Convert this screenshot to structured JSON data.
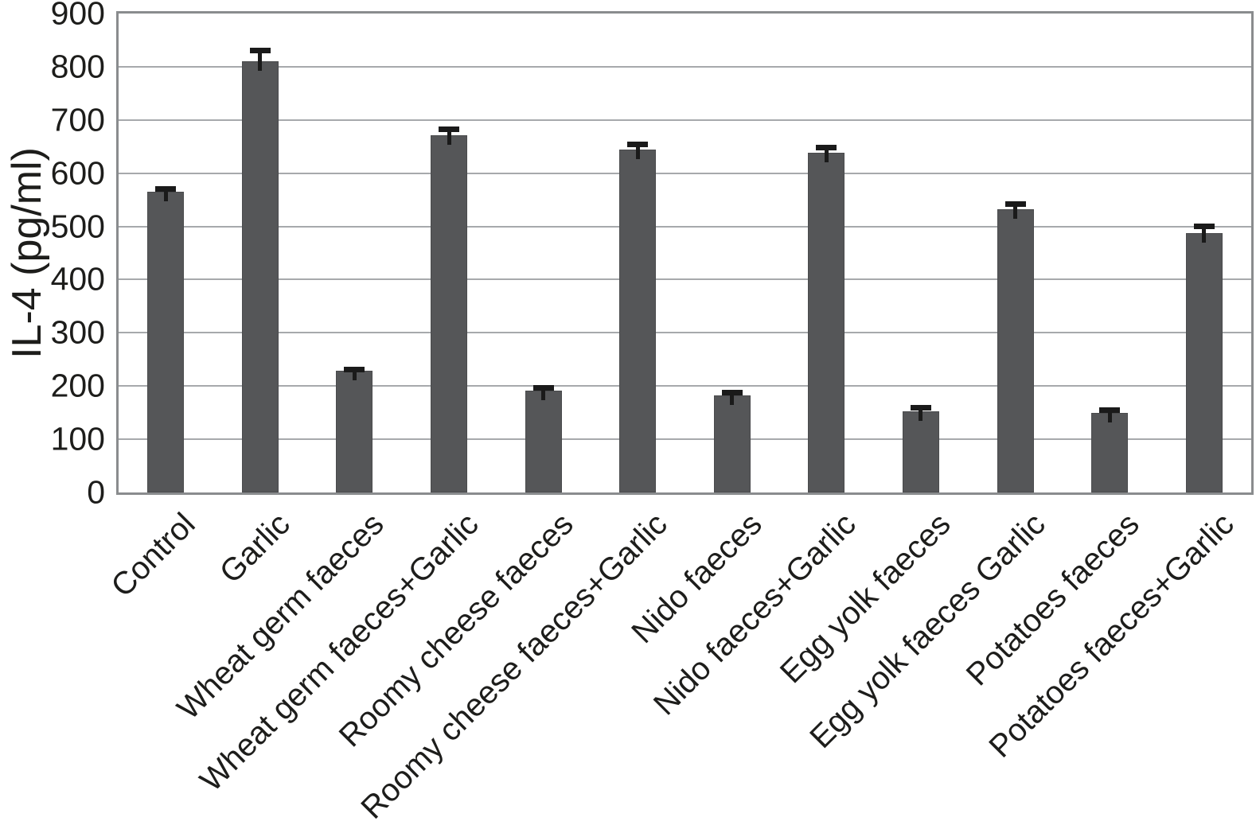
{
  "chart_data": {
    "type": "bar",
    "title": "",
    "xlabel": "",
    "ylabel": "IL-4 (pg/ml)",
    "ylim": [
      0,
      900
    ],
    "ytick_interval": 100,
    "yticks": [
      0,
      100,
      200,
      300,
      400,
      500,
      600,
      700,
      800,
      900
    ],
    "grid": "horizontal",
    "legend_position": "none",
    "bar_color": "#555658",
    "gridline_color": "#a7a9ac",
    "frame_color": "#8a8c8e",
    "error_bar_color": "#1a1a1a",
    "text_color": "#1d1d1b",
    "categories": [
      "Control",
      "Garlic",
      "Wheat germ faeces",
      "Wheat germ faeces+Garlic",
      "Roomy cheese faeces",
      "Roomy cheese faeces+Garlic",
      "Nido faeces",
      "Nido faeces+Garlic",
      "Egg yolk faeces",
      "Egg yolk faeces Garlic",
      "Potatoes faeces",
      "Potatoes faeces+Garlic"
    ],
    "values": [
      565,
      810,
      228,
      672,
      192,
      645,
      183,
      638,
      152,
      532,
      150,
      488
    ],
    "errors": [
      10,
      25,
      8,
      15,
      10,
      15,
      10,
      16,
      13,
      15,
      10,
      18
    ]
  }
}
